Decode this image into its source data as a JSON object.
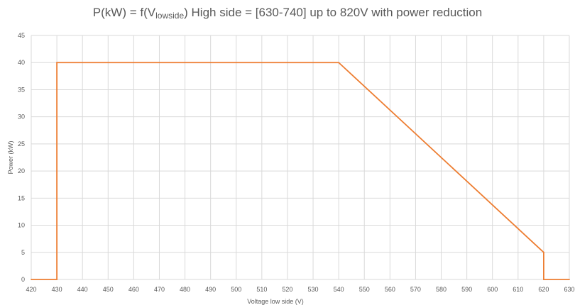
{
  "title": {
    "prefix": "P(kW) = f(V",
    "subscript": "lowside",
    "suffix": ") High side = [630-740] up to 820V with power reduction"
  },
  "chart_data": {
    "type": "line",
    "xlabel": "Voltage low side (V)",
    "ylabel": "Power (kW)",
    "xlim": [
      420,
      630
    ],
    "ylim": [
      0,
      45
    ],
    "x_ticks": [
      420,
      430,
      440,
      450,
      460,
      470,
      480,
      490,
      500,
      510,
      520,
      530,
      540,
      550,
      560,
      570,
      580,
      590,
      600,
      610,
      620,
      630
    ],
    "y_ticks": [
      0,
      5,
      10,
      15,
      20,
      25,
      30,
      35,
      40,
      45
    ],
    "grid": true,
    "legend": "none",
    "series": [
      {
        "color": "#ED7D31",
        "x": [
          420,
          430,
          430,
          540,
          620,
          620,
          630
        ],
        "y": [
          0,
          0,
          40,
          40,
          5,
          0,
          0
        ]
      }
    ]
  },
  "colors": {
    "grid": "#D9D9D9",
    "text": "#595959",
    "line": "#ED7D31"
  }
}
